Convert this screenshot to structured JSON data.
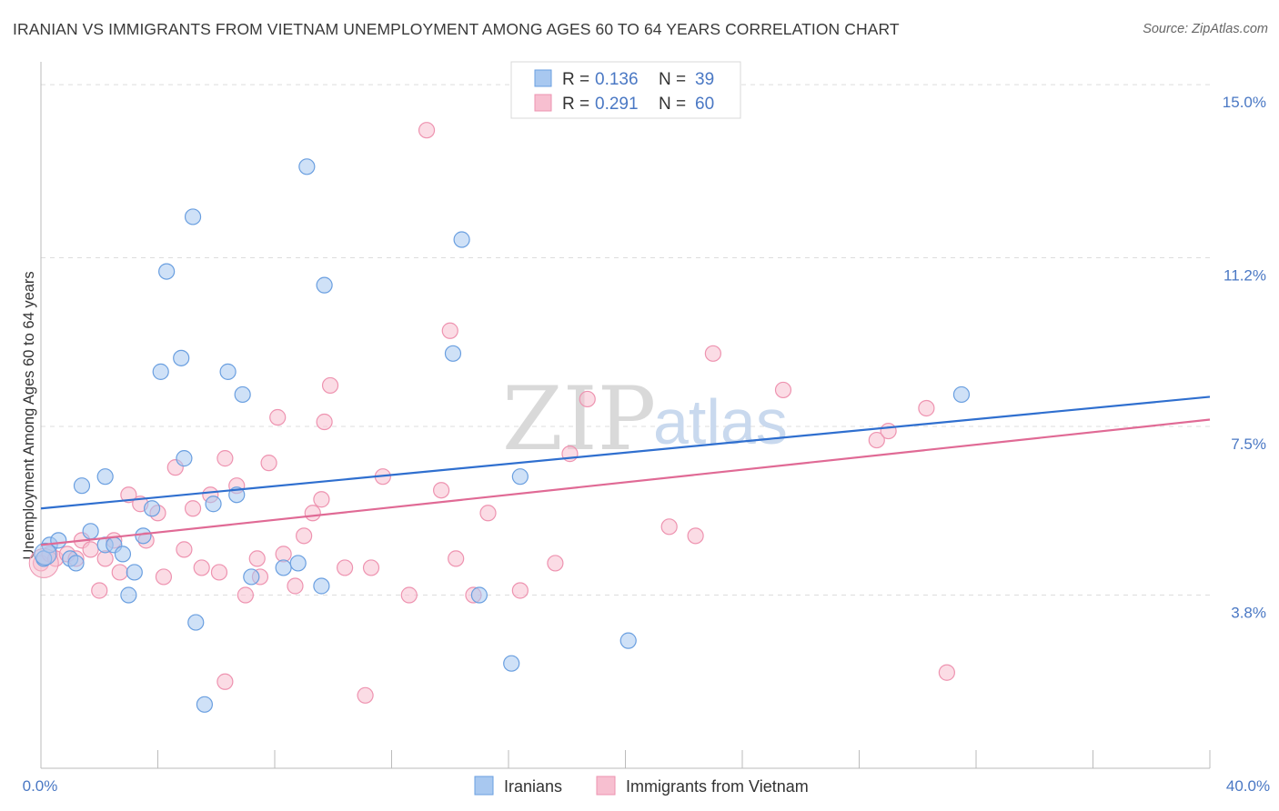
{
  "header": {
    "title": "IRANIAN VS IMMIGRANTS FROM VIETNAM UNEMPLOYMENT AMONG AGES 60 TO 64 YEARS CORRELATION CHART",
    "source": "Source: ZipAtlas.com"
  },
  "watermark": {
    "zip": "ZIP",
    "atlas": "atlas"
  },
  "legend": {
    "r_label": "R =",
    "n_label": "N =",
    "series": [
      {
        "name": "Iranians",
        "r": "0.136",
        "n": "39"
      },
      {
        "name": "Immigrants from Vietnam",
        "r": "0.291",
        "n": "60"
      }
    ]
  },
  "colors": {
    "iranians_fill": "#a8c8f0",
    "iranians_stroke": "#6a9fe0",
    "iranians_line": "#2f6fcf",
    "vietnam_fill": "#f7bfd0",
    "vietnam_stroke": "#ee93b0",
    "vietnam_line": "#e06a95",
    "axis_text": "#4a78c4",
    "grid": "#dddddd"
  },
  "chart_data": {
    "type": "scatter",
    "title": "IRANIAN VS IMMIGRANTS FROM VIETNAM UNEMPLOYMENT AMONG AGES 60 TO 64 YEARS CORRELATION CHART",
    "xlabel": "",
    "ylabel": "Unemployment Among Ages 60 to 64 years",
    "xlim": [
      0,
      40
    ],
    "ylim": [
      0,
      15.5
    ],
    "x_tick_labels": [
      "0.0%",
      "40.0%"
    ],
    "y_ticks": [
      3.8,
      7.5,
      11.2,
      15.0
    ],
    "y_tick_labels": [
      "3.8%",
      "7.5%",
      "11.2%",
      "15.0%"
    ],
    "grid": true,
    "series": [
      {
        "name": "Iranians",
        "trend": {
          "x0": 0,
          "y0": 5.7,
          "x1": 40,
          "y1": 8.15
        },
        "points": [
          [
            0.1,
            4.6
          ],
          [
            0.3,
            4.9
          ],
          [
            0.6,
            5.0
          ],
          [
            1.0,
            4.6
          ],
          [
            1.2,
            4.5
          ],
          [
            1.4,
            6.2
          ],
          [
            1.7,
            5.2
          ],
          [
            2.2,
            6.4
          ],
          [
            2.2,
            4.9
          ],
          [
            2.5,
            4.9
          ],
          [
            2.8,
            4.7
          ],
          [
            3.0,
            3.8
          ],
          [
            3.2,
            4.3
          ],
          [
            3.5,
            5.1
          ],
          [
            3.8,
            5.7
          ],
          [
            4.1,
            8.7
          ],
          [
            4.3,
            10.9
          ],
          [
            4.8,
            9.0
          ],
          [
            4.9,
            6.8
          ],
          [
            5.2,
            12.1
          ],
          [
            5.3,
            3.2
          ],
          [
            5.6,
            1.4
          ],
          [
            5.9,
            5.8
          ],
          [
            6.4,
            8.7
          ],
          [
            6.7,
            6.0
          ],
          [
            6.9,
            8.2
          ],
          [
            7.2,
            4.2
          ],
          [
            8.3,
            4.4
          ],
          [
            8.8,
            4.5
          ],
          [
            9.1,
            13.2
          ],
          [
            9.6,
            4.0
          ],
          [
            9.7,
            10.6
          ],
          [
            14.1,
            9.1
          ],
          [
            14.4,
            11.6
          ],
          [
            15.0,
            3.8
          ],
          [
            16.1,
            2.3
          ],
          [
            16.4,
            6.4
          ],
          [
            20.1,
            2.8
          ],
          [
            31.5,
            8.2
          ]
        ]
      },
      {
        "name": "Immigrants from Vietnam",
        "trend": {
          "x0": 0,
          "y0": 4.9,
          "x1": 40,
          "y1": 7.65
        },
        "points": [
          [
            0.0,
            4.5
          ],
          [
            0.3,
            4.7
          ],
          [
            0.5,
            4.6
          ],
          [
            0.9,
            4.7
          ],
          [
            1.2,
            4.6
          ],
          [
            1.4,
            5.0
          ],
          [
            1.7,
            4.8
          ],
          [
            2.0,
            3.9
          ],
          [
            2.2,
            4.6
          ],
          [
            2.5,
            5.0
          ],
          [
            2.7,
            4.3
          ],
          [
            3.0,
            6.0
          ],
          [
            3.4,
            5.8
          ],
          [
            3.6,
            5.0
          ],
          [
            4.0,
            5.6
          ],
          [
            4.2,
            4.2
          ],
          [
            4.6,
            6.6
          ],
          [
            4.9,
            4.8
          ],
          [
            5.2,
            5.7
          ],
          [
            5.5,
            4.4
          ],
          [
            5.8,
            6.0
          ],
          [
            6.1,
            4.3
          ],
          [
            6.3,
            1.9
          ],
          [
            6.3,
            6.8
          ],
          [
            6.7,
            6.2
          ],
          [
            7.0,
            3.8
          ],
          [
            7.4,
            4.6
          ],
          [
            7.5,
            4.2
          ],
          [
            7.8,
            6.7
          ],
          [
            8.1,
            7.7
          ],
          [
            8.3,
            4.7
          ],
          [
            8.7,
            4.0
          ],
          [
            9.0,
            5.1
          ],
          [
            9.3,
            5.6
          ],
          [
            9.6,
            5.9
          ],
          [
            9.7,
            7.6
          ],
          [
            9.9,
            8.4
          ],
          [
            10.4,
            4.4
          ],
          [
            11.1,
            1.6
          ],
          [
            11.3,
            4.4
          ],
          [
            11.7,
            6.4
          ],
          [
            12.6,
            3.8
          ],
          [
            13.2,
            14.0
          ],
          [
            13.7,
            6.1
          ],
          [
            14.0,
            9.6
          ],
          [
            14.2,
            4.6
          ],
          [
            14.8,
            3.8
          ],
          [
            15.3,
            5.6
          ],
          [
            16.4,
            3.9
          ],
          [
            17.6,
            4.5
          ],
          [
            18.1,
            6.9
          ],
          [
            18.7,
            8.1
          ],
          [
            21.5,
            5.3
          ],
          [
            22.4,
            5.1
          ],
          [
            23.0,
            9.1
          ],
          [
            25.4,
            8.3
          ],
          [
            28.6,
            7.2
          ],
          [
            29.0,
            7.4
          ],
          [
            30.3,
            7.9
          ],
          [
            31.0,
            2.1
          ]
        ]
      }
    ]
  }
}
